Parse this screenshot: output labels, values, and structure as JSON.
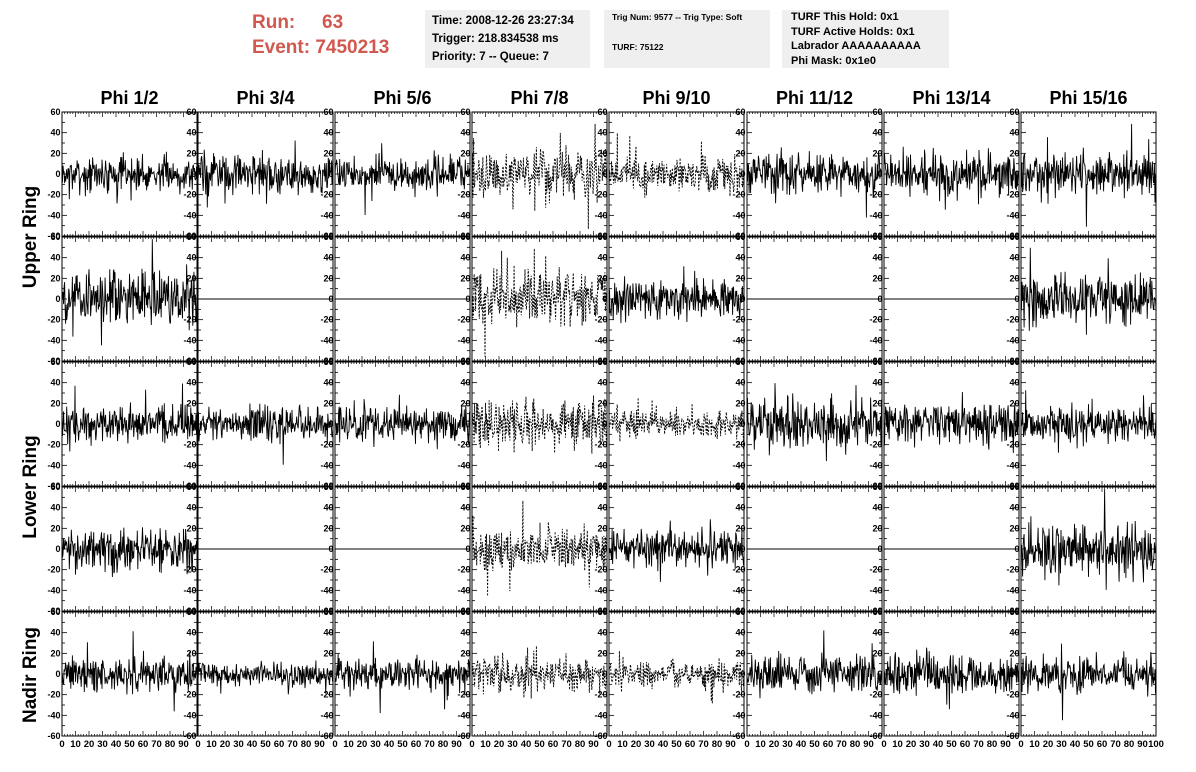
{
  "run_info": {
    "run_label": "Run:",
    "run_value": "63",
    "event_label": "Event:",
    "event_value": "7450213"
  },
  "time_box": {
    "time": "Time: 2008-12-26 23:27:34",
    "trigger": "Trigger: 218.834538 ms",
    "priority": "Priority: 7 -- Queue: 7"
  },
  "trig_box": {
    "trig": "Trig Num: 9577 -- Trig Type: Soft",
    "turf": "TURF: 75122"
  },
  "hold_box": {
    "this_hold": "TURF This Hold: 0x1",
    "active_holds": "TURF Active Holds: 0x1",
    "labrador": "Labrador AAAAAAAAAA",
    "phi_mask": "Phi Mask: 0x1e0"
  },
  "columns": [
    "Phi 1/2",
    "Phi 3/4",
    "Phi 5/6",
    "Phi 7/8",
    "Phi 9/10",
    "Phi 11/12",
    "Phi 13/14",
    "Phi 15/16"
  ],
  "rings": [
    "Upper Ring",
    "Lower Ring",
    "Nadir Ring"
  ],
  "chart_data": {
    "type": "line",
    "layout": "grid of 5 rows x 8 columns of waveform panels",
    "xlim": [
      0,
      100
    ],
    "ylim": [
      -60,
      60
    ],
    "x_ticks": [
      0,
      10,
      20,
      30,
      40,
      50,
      60,
      70,
      80,
      90,
      100
    ],
    "y_ticks": [
      -60,
      -40,
      -20,
      0,
      20,
      40,
      60
    ],
    "panels": [
      {
        "row": 0,
        "col": 0,
        "style": "solid",
        "amplitude": 12,
        "flat": false
      },
      {
        "row": 0,
        "col": 1,
        "style": "solid",
        "amplitude": 13,
        "flat": false
      },
      {
        "row": 0,
        "col": 2,
        "style": "solid",
        "amplitude": 13,
        "flat": false
      },
      {
        "row": 0,
        "col": 3,
        "style": "dashed",
        "amplitude": 18,
        "flat": false
      },
      {
        "row": 0,
        "col": 4,
        "style": "dashed",
        "amplitude": 12,
        "flat": false
      },
      {
        "row": 0,
        "col": 5,
        "style": "solid",
        "amplitude": 14,
        "flat": false
      },
      {
        "row": 0,
        "col": 6,
        "style": "solid",
        "amplitude": 16,
        "flat": false
      },
      {
        "row": 0,
        "col": 7,
        "style": "solid",
        "amplitude": 15,
        "flat": false
      },
      {
        "row": 1,
        "col": 0,
        "style": "solid",
        "amplitude": 20,
        "flat": false
      },
      {
        "row": 1,
        "col": 1,
        "style": "solid",
        "amplitude": 0,
        "flat": true
      },
      {
        "row": 1,
        "col": 2,
        "style": "solid",
        "amplitude": 0,
        "flat": true
      },
      {
        "row": 1,
        "col": 3,
        "style": "dashed",
        "amplitude": 20,
        "flat": false
      },
      {
        "row": 1,
        "col": 4,
        "style": "solid",
        "amplitude": 14,
        "flat": false
      },
      {
        "row": 1,
        "col": 5,
        "style": "solid",
        "amplitude": 0,
        "flat": true
      },
      {
        "row": 1,
        "col": 6,
        "style": "solid",
        "amplitude": 0,
        "flat": true
      },
      {
        "row": 1,
        "col": 7,
        "style": "solid",
        "amplitude": 18,
        "flat": false
      },
      {
        "row": 2,
        "col": 0,
        "style": "solid",
        "amplitude": 13,
        "flat": false
      },
      {
        "row": 2,
        "col": 1,
        "style": "solid",
        "amplitude": 13,
        "flat": false
      },
      {
        "row": 2,
        "col": 2,
        "style": "solid",
        "amplitude": 14,
        "flat": false
      },
      {
        "row": 2,
        "col": 3,
        "style": "dashed",
        "amplitude": 18,
        "flat": false
      },
      {
        "row": 2,
        "col": 4,
        "style": "dashed",
        "amplitude": 10,
        "flat": false
      },
      {
        "row": 2,
        "col": 5,
        "style": "solid",
        "amplitude": 17,
        "flat": false
      },
      {
        "row": 2,
        "col": 6,
        "style": "solid",
        "amplitude": 15,
        "flat": false
      },
      {
        "row": 2,
        "col": 7,
        "style": "solid",
        "amplitude": 12,
        "flat": false
      },
      {
        "row": 3,
        "col": 0,
        "style": "solid",
        "amplitude": 15,
        "flat": false
      },
      {
        "row": 3,
        "col": 1,
        "style": "solid",
        "amplitude": 0,
        "flat": true
      },
      {
        "row": 3,
        "col": 2,
        "style": "solid",
        "amplitude": 0,
        "flat": true
      },
      {
        "row": 3,
        "col": 3,
        "style": "dashed",
        "amplitude": 15,
        "flat": false
      },
      {
        "row": 3,
        "col": 4,
        "style": "solid",
        "amplitude": 13,
        "flat": false
      },
      {
        "row": 3,
        "col": 5,
        "style": "solid",
        "amplitude": 0,
        "flat": true
      },
      {
        "row": 3,
        "col": 6,
        "style": "solid",
        "amplitude": 0,
        "flat": true
      },
      {
        "row": 3,
        "col": 7,
        "style": "solid",
        "amplitude": 20,
        "flat": false
      },
      {
        "row": 4,
        "col": 0,
        "style": "solid",
        "amplitude": 12,
        "flat": false
      },
      {
        "row": 4,
        "col": 1,
        "style": "solid",
        "amplitude": 8,
        "flat": false
      },
      {
        "row": 4,
        "col": 2,
        "style": "solid",
        "amplitude": 11,
        "flat": false
      },
      {
        "row": 4,
        "col": 3,
        "style": "dashed",
        "amplitude": 12,
        "flat": false
      },
      {
        "row": 4,
        "col": 4,
        "style": "dashed",
        "amplitude": 10,
        "flat": false
      },
      {
        "row": 4,
        "col": 5,
        "style": "solid",
        "amplitude": 13,
        "flat": false
      },
      {
        "row": 4,
        "col": 6,
        "style": "solid",
        "amplitude": 14,
        "flat": false
      },
      {
        "row": 4,
        "col": 7,
        "style": "solid",
        "amplitude": 13,
        "flat": false
      }
    ]
  }
}
